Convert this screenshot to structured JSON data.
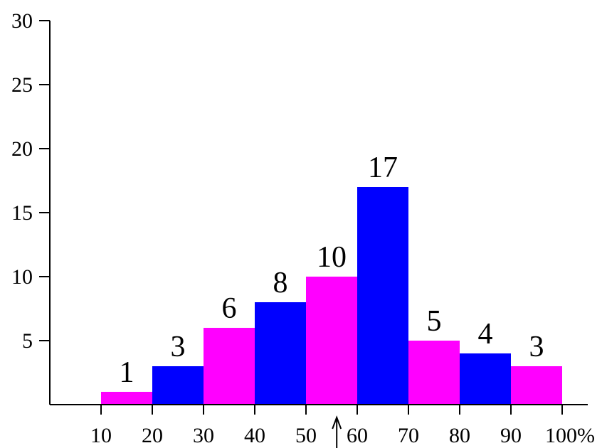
{
  "chart_data": {
    "type": "bar",
    "bins": [
      {
        "from": 10,
        "to": 20,
        "value": 1,
        "label": "1"
      },
      {
        "from": 20,
        "to": 30,
        "value": 3,
        "label": "3"
      },
      {
        "from": 30,
        "to": 40,
        "value": 6,
        "label": "6"
      },
      {
        "from": 40,
        "to": 50,
        "value": 8,
        "label": "8"
      },
      {
        "from": 50,
        "to": 60,
        "value": 10,
        "label": "10"
      },
      {
        "from": 60,
        "to": 70,
        "value": 17,
        "label": "17"
      },
      {
        "from": 70,
        "to": 80,
        "value": 5,
        "label": "5"
      },
      {
        "from": 80,
        "to": 90,
        "value": 4,
        "label": "4"
      },
      {
        "from": 90,
        "to": 100,
        "value": 3,
        "label": "3"
      }
    ],
    "colors": [
      "#ff00ff",
      "#0000ff"
    ],
    "x_ticks": [
      {
        "value": 10,
        "label": "10"
      },
      {
        "value": 20,
        "label": "20"
      },
      {
        "value": 30,
        "label": "30"
      },
      {
        "value": 40,
        "label": "40"
      },
      {
        "value": 50,
        "label": "50"
      },
      {
        "value": 60,
        "label": "60"
      },
      {
        "value": 70,
        "label": "70"
      },
      {
        "value": 80,
        "label": "80"
      },
      {
        "value": 90,
        "label": "90"
      },
      {
        "value": 100,
        "label": "100%"
      }
    ],
    "y_ticks": [
      {
        "value": 5,
        "label": "5"
      },
      {
        "value": 10,
        "label": "10"
      },
      {
        "value": 15,
        "label": "15"
      },
      {
        "value": 20,
        "label": "20"
      },
      {
        "value": 25,
        "label": "25"
      },
      {
        "value": 30,
        "label": "30"
      }
    ],
    "ylim": [
      0,
      30
    ],
    "xlim": [
      0,
      105
    ],
    "marker": {
      "value": 56
    },
    "title": "",
    "xlabel": "",
    "ylabel": "",
    "grid": false
  }
}
